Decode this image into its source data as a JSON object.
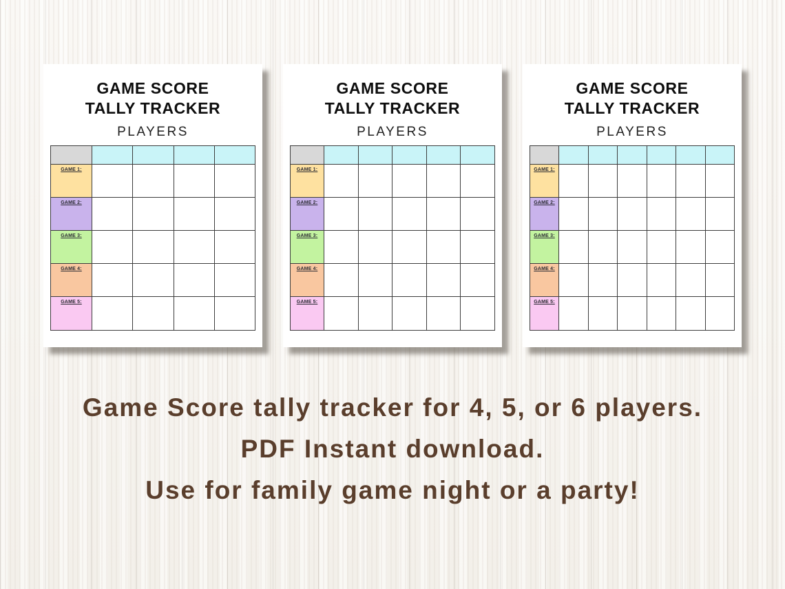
{
  "colors": {
    "header_corner": "#d8d8d8",
    "header_player": "#c9f4f8",
    "grid_border": "#3c3c3c",
    "caption_text": "#5a3e2c"
  },
  "sheets": [
    {
      "title_line1": "GAME SCORE",
      "title_line2": "TALLY TRACKER",
      "subtitle": "PLAYERS",
      "player_columns": 4,
      "rows": [
        {
          "label": "GAME 1:",
          "color": "#fee1a0"
        },
        {
          "label": "GAME 2:",
          "color": "#c9b3ec"
        },
        {
          "label": "GAME 3:",
          "color": "#c3f3a0"
        },
        {
          "label": "GAME 4:",
          "color": "#f9c7a0"
        },
        {
          "label": "GAME 5:",
          "color": "#fac9f2"
        }
      ]
    },
    {
      "title_line1": "GAME SCORE",
      "title_line2": "TALLY TRACKER",
      "subtitle": "PLAYERS",
      "player_columns": 5,
      "rows": [
        {
          "label": "GAME 1:",
          "color": "#fee1a0"
        },
        {
          "label": "GAME 2:",
          "color": "#c9b3ec"
        },
        {
          "label": "GAME 3:",
          "color": "#c3f3a0"
        },
        {
          "label": "GAME 4:",
          "color": "#f9c7a0"
        },
        {
          "label": "GAME 5:",
          "color": "#fac9f2"
        }
      ]
    },
    {
      "title_line1": "GAME SCORE",
      "title_line2": "TALLY TRACKER",
      "subtitle": "PLAYERS",
      "player_columns": 6,
      "rows": [
        {
          "label": "GAME 1:",
          "color": "#fee1a0"
        },
        {
          "label": "GAME 2:",
          "color": "#c9b3ec"
        },
        {
          "label": "GAME 3:",
          "color": "#c3f3a0"
        },
        {
          "label": "GAME 4:",
          "color": "#f9c7a0"
        },
        {
          "label": "GAME 5:",
          "color": "#fac9f2"
        }
      ]
    }
  ],
  "caption": {
    "lines": [
      "Game Score tally tracker for 4, 5, or 6 players.",
      "PDF Instant download.",
      "Use for family game night or a party!"
    ]
  }
}
